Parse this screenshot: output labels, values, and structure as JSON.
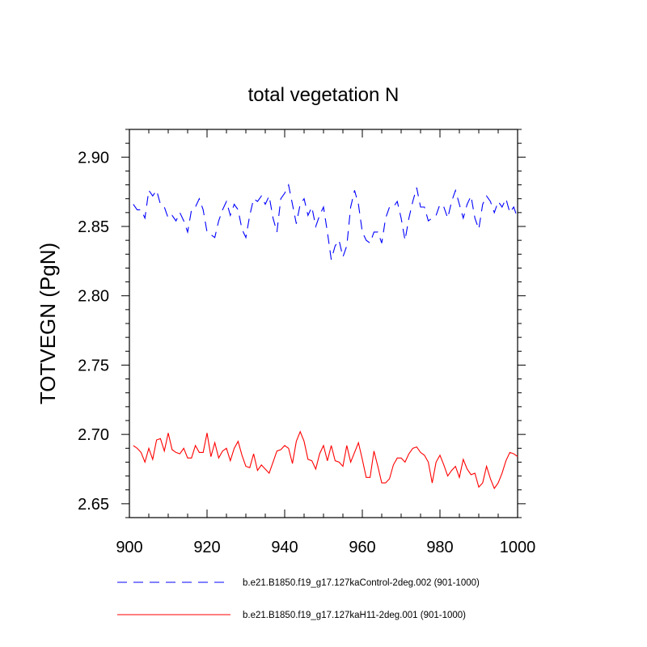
{
  "chart_data": {
    "type": "line",
    "title": "total vegetation N",
    "xlabel": "",
    "ylabel": "TOTVEGN  (PgN)",
    "xlim": [
      900,
      1000
    ],
    "ylim": [
      2.64,
      2.92
    ],
    "xticks": [
      900,
      920,
      940,
      960,
      980,
      1000
    ],
    "xtick_labels": [
      "900",
      "920",
      "940",
      "960",
      "980",
      "1000"
    ],
    "yticks": [
      2.65,
      2.7,
      2.75,
      2.8,
      2.85,
      2.9
    ],
    "ytick_labels": [
      "2.65",
      "2.70",
      "2.75",
      "2.80",
      "2.85",
      "2.90"
    ],
    "grid": false,
    "legend_position": "bottom",
    "x": [
      901,
      902,
      903,
      904,
      905,
      906,
      907,
      908,
      909,
      910,
      911,
      912,
      913,
      914,
      915,
      916,
      917,
      918,
      919,
      920,
      921,
      922,
      923,
      924,
      925,
      926,
      927,
      928,
      929,
      930,
      931,
      932,
      933,
      934,
      935,
      936,
      937,
      938,
      939,
      940,
      941,
      942,
      943,
      944,
      945,
      946,
      947,
      948,
      949,
      950,
      951,
      952,
      953,
      954,
      955,
      956,
      957,
      958,
      959,
      960,
      961,
      962,
      963,
      964,
      965,
      966,
      967,
      968,
      969,
      970,
      971,
      972,
      973,
      974,
      975,
      976,
      977,
      978,
      979,
      980,
      981,
      982,
      983,
      984,
      985,
      986,
      987,
      988,
      989,
      990,
      991,
      992,
      993,
      994,
      995,
      996,
      997,
      998,
      999,
      1000
    ],
    "series": [
      {
        "name": "b.e21.B1850.f19_g17.127kaControl-2deg.002 (901-1000)",
        "color": "#0000ff",
        "style": "dashed",
        "values": [
          2.866,
          2.862,
          2.862,
          2.856,
          2.876,
          2.872,
          2.876,
          2.866,
          2.864,
          2.856,
          2.858,
          2.854,
          2.86,
          2.854,
          2.846,
          2.862,
          2.864,
          2.87,
          2.862,
          2.846,
          2.844,
          2.842,
          2.854,
          2.862,
          2.868,
          2.858,
          2.866,
          2.862,
          2.848,
          2.842,
          2.858,
          2.87,
          2.868,
          2.872,
          2.866,
          2.872,
          2.856,
          2.846,
          2.87,
          2.874,
          2.88,
          2.866,
          2.852,
          2.866,
          2.87,
          2.858,
          2.864,
          2.85,
          2.858,
          2.864,
          2.846,
          2.826,
          2.836,
          2.84,
          2.828,
          2.836,
          2.864,
          2.876,
          2.866,
          2.846,
          2.84,
          2.838,
          2.846,
          2.846,
          2.838,
          2.856,
          2.864,
          2.864,
          2.868,
          2.856,
          2.84,
          2.856,
          2.868,
          2.878,
          2.864,
          2.864,
          2.854,
          2.856,
          2.858,
          2.866,
          2.864,
          2.856,
          2.868,
          2.876,
          2.866,
          2.856,
          2.866,
          2.872,
          2.856,
          2.848,
          2.866,
          2.872,
          2.868,
          2.86,
          2.868,
          2.864,
          2.87,
          2.86,
          2.864,
          2.856
        ]
      },
      {
        "name": "b.e21.B1850.f19_g17.127kaH11-2deg.001 (901-1000)",
        "color": "#ff0000",
        "style": "solid",
        "values": [
          2.692,
          2.69,
          2.687,
          2.68,
          2.69,
          2.682,
          2.696,
          2.697,
          2.688,
          2.701,
          2.689,
          2.687,
          2.686,
          2.69,
          2.683,
          2.683,
          2.692,
          2.687,
          2.687,
          2.701,
          2.684,
          2.694,
          2.683,
          2.688,
          2.69,
          2.681,
          2.69,
          2.695,
          2.685,
          2.677,
          2.676,
          2.686,
          2.674,
          2.678,
          2.675,
          2.672,
          2.68,
          2.688,
          2.689,
          2.692,
          2.69,
          2.679,
          2.695,
          2.702,
          2.695,
          2.682,
          2.681,
          2.675,
          2.686,
          2.692,
          2.681,
          2.692,
          2.681,
          2.68,
          2.677,
          2.692,
          2.68,
          2.687,
          2.694,
          2.682,
          2.669,
          2.669,
          2.688,
          2.677,
          2.665,
          2.665,
          2.668,
          2.678,
          2.683,
          2.683,
          2.68,
          2.686,
          2.69,
          2.691,
          2.687,
          2.685,
          2.68,
          2.665,
          2.68,
          2.685,
          2.678,
          2.67,
          2.674,
          2.677,
          2.669,
          2.682,
          2.675,
          2.671,
          2.672,
          2.662,
          2.665,
          2.677,
          2.668,
          2.661,
          2.665,
          2.672,
          2.681,
          2.687,
          2.686,
          2.684
        ]
      }
    ]
  }
}
